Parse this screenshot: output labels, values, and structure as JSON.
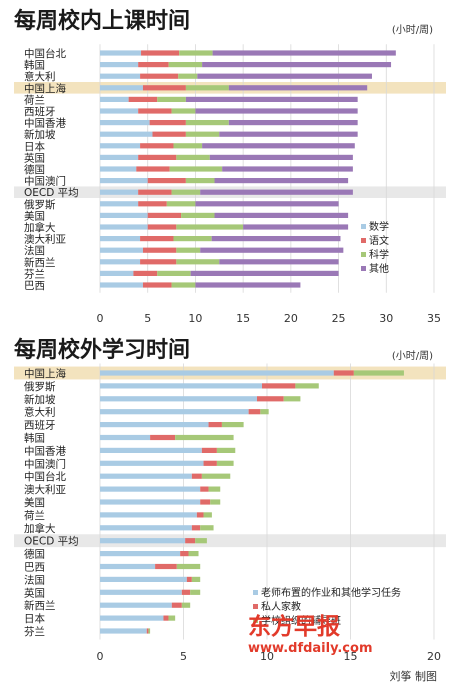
{
  "colors": {
    "math": "#a9cbe4",
    "language": "#e06a68",
    "science": "#a6c878",
    "other": "#9a78b6",
    "homework": "#a9cbe4",
    "tutor": "#e06a68",
    "school_tutoring": "#a6c878",
    "highlight": "#f3e3be",
    "oecd": "#e8e8e8"
  },
  "chart_data": [
    {
      "type": "bar",
      "stacked": true,
      "orientation": "horizontal",
      "title": "每周校内上课时间",
      "unit": "(小时/周)",
      "xlim": [
        0,
        35
      ],
      "xticks": [
        0,
        5,
        10,
        15,
        20,
        25,
        30,
        35
      ],
      "grid": true,
      "legend_position": "bottom-right",
      "categories": [
        "中国台北",
        "韩国",
        "意大利",
        "中国上海",
        "荷兰",
        "西班牙",
        "中国香港",
        "新加坡",
        "日本",
        "英国",
        "德国",
        "中国澳门",
        "OECD 平均",
        "俄罗斯",
        "美国",
        "加拿大",
        "澳大利亚",
        "法国",
        "新西兰",
        "芬兰",
        "巴西"
      ],
      "highlight": [
        "中国上海"
      ],
      "shaded": [
        "OECD 平均"
      ],
      "series": [
        {
          "name": "数学",
          "values": [
            4.3,
            4.0,
            4.2,
            4.5,
            3.0,
            4.0,
            5.2,
            5.5,
            4.2,
            4.0,
            3.8,
            5.0,
            4.0,
            4.0,
            5.0,
            5.0,
            4.2,
            4.5,
            4.2,
            3.5,
            4.5
          ]
        },
        {
          "name": "语文",
          "values": [
            4.0,
            3.2,
            4.0,
            4.5,
            3.0,
            3.5,
            3.8,
            3.5,
            3.5,
            4.0,
            3.5,
            4.0,
            3.5,
            3.0,
            3.5,
            3.0,
            3.5,
            3.5,
            3.8,
            2.5,
            3.0
          ]
        },
        {
          "name": "科学",
          "values": [
            3.5,
            3.5,
            2.0,
            4.5,
            3.0,
            2.5,
            4.5,
            3.5,
            3.0,
            3.5,
            5.5,
            3.0,
            3.0,
            3.0,
            3.5,
            7.0,
            4.0,
            2.5,
            4.5,
            3.5,
            2.5
          ]
        },
        {
          "name": "其他",
          "values": [
            19.2,
            19.8,
            18.3,
            14.5,
            18.0,
            17.0,
            13.5,
            14.5,
            16.0,
            15.0,
            13.7,
            14.0,
            16.0,
            15.0,
            14.0,
            11.0,
            13.5,
            15.0,
            12.5,
            15.5,
            11.0
          ]
        }
      ]
    },
    {
      "type": "bar",
      "stacked": true,
      "orientation": "horizontal",
      "title": "每周校外学习时间",
      "unit": "(小时/周)",
      "xlim": [
        0,
        20
      ],
      "xticks": [
        0,
        5,
        10,
        15,
        20
      ],
      "grid": true,
      "legend_position": "bottom-right",
      "categories": [
        "中国上海",
        "俄罗斯",
        "新加坡",
        "意大利",
        "西班牙",
        "韩国",
        "中国香港",
        "中国澳门",
        "中国台北",
        "澳大利亚",
        "美国",
        "荷兰",
        "加拿大",
        "OECD 平均",
        "德国",
        "巴西",
        "法国",
        "英国",
        "新西兰",
        "日本",
        "芬兰"
      ],
      "highlight": [
        "中国上海"
      ],
      "shaded": [
        "OECD 平均"
      ],
      "series": [
        {
          "name": "老师布置的作业和其他学习任务",
          "values": [
            14.0,
            9.7,
            9.4,
            8.9,
            6.5,
            3.0,
            6.1,
            6.2,
            5.5,
            6.0,
            6.0,
            5.8,
            5.5,
            5.1,
            4.8,
            3.3,
            5.2,
            4.9,
            4.3,
            3.8,
            2.8
          ]
        },
        {
          "name": "私人家教",
          "values": [
            1.2,
            2.0,
            1.6,
            0.7,
            0.8,
            1.5,
            0.9,
            0.8,
            0.6,
            0.5,
            0.6,
            0.4,
            0.5,
            0.6,
            0.5,
            1.3,
            0.3,
            0.5,
            0.6,
            0.3,
            0.1
          ]
        },
        {
          "name": "学校组织的辅导班",
          "values": [
            3.0,
            1.4,
            1.0,
            0.5,
            1.3,
            3.5,
            1.1,
            1.0,
            1.7,
            0.7,
            0.6,
            0.5,
            0.8,
            0.7,
            0.6,
            1.4,
            0.5,
            0.6,
            0.5,
            0.4,
            0.1
          ]
        }
      ]
    }
  ],
  "watermark": {
    "name": "东方早报",
    "url": "www.dfdaily.com"
  },
  "credit": "刘筝 制图"
}
